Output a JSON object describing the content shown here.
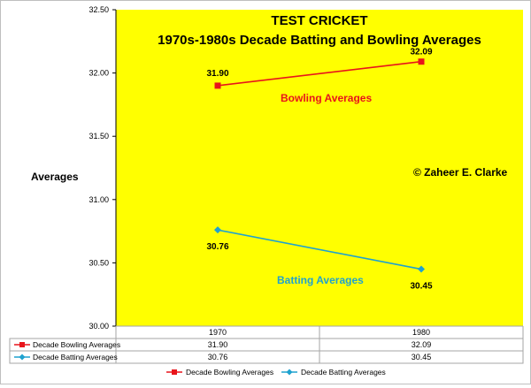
{
  "chart_data": {
    "type": "line",
    "title": "TEST CRICKET",
    "subtitle": "1970s-1980s Decade Batting and Bowling Averages",
    "ylabel": "Averages",
    "xlabel": "",
    "categories": [
      "1970",
      "1980"
    ],
    "ylim": [
      30.0,
      32.5
    ],
    "ytick_step": 0.5,
    "ytick_labels": [
      "30.00",
      "30.50",
      "31.00",
      "31.50",
      "32.00",
      "32.50"
    ],
    "plot_background": "#ffff00",
    "grid": false,
    "legend_position": "bottom",
    "series": [
      {
        "name": "Decade Bowling Averages",
        "values": [
          31.9,
          32.09
        ],
        "value_labels": [
          "31.90",
          "32.09"
        ],
        "color": "#e8141b",
        "marker": "square",
        "annotation": "Bowling Averages"
      },
      {
        "name": "Decade Batting Averages",
        "values": [
          30.76,
          30.45
        ],
        "value_labels": [
          "30.76",
          "30.45"
        ],
        "color": "#1fa2cf",
        "marker": "diamond",
        "annotation": "Batting Averages"
      }
    ],
    "annotations": [
      "© Zaheer E. Clarke"
    ],
    "data_table": true
  }
}
